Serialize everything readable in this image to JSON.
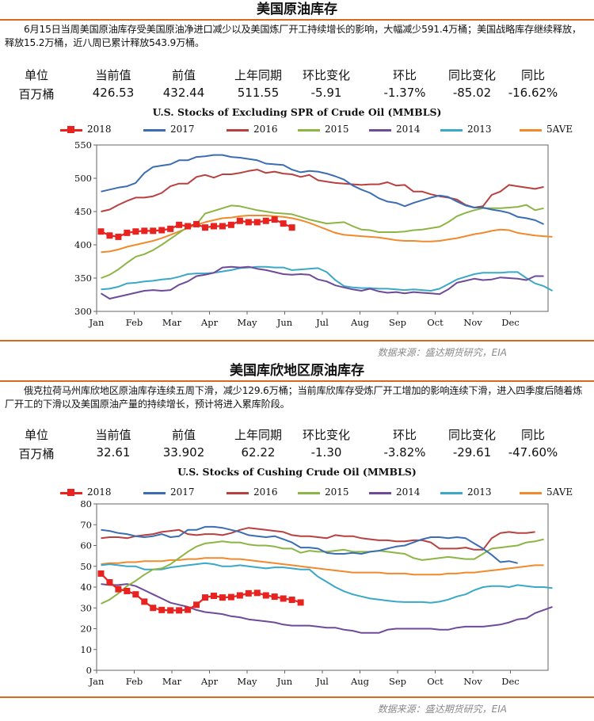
{
  "sections": [
    {
      "title": "美国原油库存",
      "description": "6月15日当周美国原油库存受美国原油净进口减少以及美国炼厂开工持续增长的影响，大幅减少591.4万桶；美国战略库存继续释放，释放15.2万桶，近八周已累计释放543.9万桶。",
      "stats": {
        "headers": [
          "单位",
          "当前值",
          "前值",
          "上年同期",
          "环比变化",
          "环比",
          "同比变化",
          "同比"
        ],
        "values": [
          "百万桶",
          "426.53",
          "432.44",
          "511.55",
          "-5.91",
          "-1.37%",
          "-85.02",
          "-16.62%"
        ]
      },
      "source": "数据来源：盛达期货研究，EIA"
    },
    {
      "title": "美国库欣地区原油库存",
      "description": "俄克拉荷马州库欣地区原油库存连续五周下滑，减少129.6万桶；当前库欣库存受炼厂开工增加的影响连续下滑，进入四季度后随着炼厂开工的下滑以及美国原油产量的持续增长，预计将进入累库阶段。",
      "stats": {
        "headers": [
          "单位",
          "当前值",
          "前值",
          "上年同期",
          "环比变化",
          "环比",
          "同比变化",
          "同比"
        ],
        "values": [
          "百万桶",
          "32.61",
          "33.902",
          "62.22",
          "-1.30",
          "-3.82%",
          "-29.61",
          "-47.60%"
        ]
      },
      "source": "数据来源：盛达期货研究，EIA"
    }
  ],
  "colors": {
    "s2018": "#e8231f",
    "s2017": "#3b6db3",
    "s2016": "#b8403f",
    "s2015": "#8cb544",
    "s2014": "#6e4a98",
    "s2013": "#3aa8c6",
    "s5ave": "#f08a2c",
    "rule": "#d96a1d"
  },
  "chart_data": [
    {
      "type": "line",
      "title": "U.S.  Stocks of Excluding SPR of Crude Oil (MMBLS)",
      "x_labels": [
        "Jan",
        "Feb",
        "Mar",
        "Apr",
        "May",
        "Jun",
        "Jul",
        "Aug",
        "Sep",
        "Oct",
        "Nov",
        "Dec"
      ],
      "x_unit": "week",
      "ylim": [
        300,
        550
      ],
      "yticks": [
        300,
        350,
        400,
        450,
        500,
        550
      ],
      "grid": false,
      "legend": "top",
      "series": [
        {
          "name": "2018",
          "key": "s2018",
          "values": [
            420,
            414,
            412,
            418,
            420,
            421,
            421,
            422,
            424,
            430,
            428,
            431,
            426,
            428,
            428,
            430,
            436,
            434,
            434,
            436,
            438,
            432,
            426
          ]
        },
        {
          "name": "2017",
          "key": "s2017",
          "values": [
            480,
            483,
            486,
            488,
            493,
            508,
            517,
            519,
            521,
            527,
            527,
            532,
            533,
            535,
            535,
            532,
            531,
            529,
            527,
            522,
            521,
            520,
            513,
            509,
            511,
            510,
            507,
            503,
            498,
            489,
            483,
            478,
            470,
            465,
            463,
            458,
            463,
            467,
            471,
            474,
            472,
            465,
            459,
            456,
            456,
            453,
            451,
            448,
            442,
            440,
            437,
            431
          ]
        },
        {
          "name": "2016",
          "key": "s2016",
          "values": [
            450,
            453,
            460,
            466,
            471,
            471,
            473,
            478,
            488,
            492,
            492,
            502,
            505,
            501,
            506,
            506,
            508,
            511,
            513,
            508,
            510,
            507,
            506,
            502,
            505,
            497,
            495,
            493,
            492,
            491,
            490,
            491,
            491,
            494,
            489,
            490,
            480,
            480,
            476,
            473,
            471,
            468,
            460,
            456,
            458,
            475,
            480,
            490,
            488,
            486,
            484,
            487
          ]
        },
        {
          "name": "2015",
          "key": "s2015",
          "values": [
            350,
            355,
            363,
            373,
            382,
            386,
            392,
            400,
            409,
            418,
            427,
            431,
            447,
            451,
            455,
            459,
            458,
            455,
            452,
            450,
            448,
            447,
            446,
            442,
            438,
            435,
            432,
            433,
            434,
            428,
            423,
            422,
            419,
            419,
            419,
            420,
            422,
            423,
            425,
            427,
            434,
            443,
            448,
            452,
            455,
            455,
            455,
            456,
            457,
            460,
            452,
            455
          ]
        },
        {
          "name": "2014",
          "key": "s2014",
          "values": [
            327,
            319,
            322,
            325,
            328,
            331,
            332,
            331,
            332,
            340,
            345,
            353,
            355,
            358,
            366,
            367,
            366,
            367,
            364,
            362,
            359,
            356,
            355,
            356,
            355,
            348,
            345,
            339,
            336,
            333,
            331,
            334,
            330,
            328,
            329,
            327,
            329,
            328,
            327,
            326,
            333,
            343,
            346,
            349,
            347,
            348,
            351,
            350,
            349,
            347,
            353,
            353
          ]
        },
        {
          "name": "2013",
          "key": "s2013",
          "values": [
            333,
            334,
            337,
            342,
            343,
            345,
            346,
            348,
            349,
            352,
            356,
            357,
            357,
            358,
            360,
            362,
            365,
            366,
            367,
            367,
            366,
            366,
            362,
            363,
            364,
            365,
            359,
            347,
            338,
            336,
            335,
            335,
            334,
            334,
            333,
            332,
            333,
            332,
            331,
            334,
            341,
            348,
            352,
            356,
            358,
            358,
            358,
            359,
            359,
            350,
            342,
            338,
            331
          ]
        },
        {
          "name": "5AVE",
          "key": "s5ave",
          "values": [
            389,
            390,
            393,
            397,
            400,
            403,
            406,
            410,
            415,
            420,
            425,
            430,
            434,
            437,
            440,
            441,
            443,
            444,
            444,
            444,
            443,
            442,
            440,
            437,
            433,
            428,
            423,
            418,
            415,
            414,
            413,
            412,
            411,
            409,
            407,
            406,
            406,
            405,
            405,
            406,
            408,
            410,
            413,
            416,
            418,
            421,
            423,
            422,
            418,
            416,
            414,
            413,
            412
          ]
        }
      ]
    },
    {
      "type": "line",
      "title": "U.S.  Stocks of Cushing  Crude Oil (MMBLS)",
      "x_labels": [
        "Jan",
        "Feb",
        "Mar",
        "Apr",
        "May",
        "Jun",
        "Jul",
        "Aug",
        "Sep",
        "Oct",
        "Nov",
        "Dec"
      ],
      "x_unit": "week",
      "ylim": [
        0,
        80
      ],
      "yticks": [
        0,
        10,
        20,
        30,
        40,
        50,
        60,
        70,
        80
      ],
      "grid": false,
      "legend": "top",
      "series": [
        {
          "name": "2018",
          "key": "s2018",
          "values": [
            46.5,
            42.3,
            39.0,
            38.1,
            36.5,
            33.0,
            30.0,
            29.0,
            28.8,
            28.8,
            29.1,
            31.5,
            35.0,
            35.8,
            35.0,
            35.2,
            36.0,
            37.0,
            37.2,
            36.0,
            35.4,
            34.5,
            33.9,
            32.6
          ]
        },
        {
          "name": "2017",
          "key": "s2017",
          "values": [
            67.5,
            67.0,
            66.0,
            65.5,
            64.5,
            64.0,
            64.5,
            65.5,
            64.0,
            64.5,
            67.5,
            67.5,
            69.0,
            69.0,
            68.5,
            67.5,
            66.5,
            65.0,
            64.5,
            64.0,
            64.5,
            63.0,
            61.5,
            59.0,
            59.0,
            58.5,
            56.5,
            56.0,
            56.0,
            56.5,
            56.0,
            57.0,
            57.5,
            58.5,
            59.5,
            60.0,
            61.5,
            63.0,
            64.0,
            64.0,
            63.5,
            64.0,
            63.5,
            61.0,
            58.5,
            55.5,
            52.0,
            52.5,
            51.5
          ]
        },
        {
          "name": "2016",
          "key": "s2016",
          "values": [
            63.5,
            64.0,
            64.0,
            63.5,
            64.5,
            65.0,
            65.5,
            66.5,
            67.0,
            67.5,
            65.5,
            65.0,
            65.5,
            65.5,
            65.0,
            66.0,
            67.5,
            68.5,
            68.0,
            67.5,
            67.0,
            66.5,
            65.0,
            64.5,
            64.5,
            64.0,
            63.5,
            65.0,
            64.5,
            64.5,
            63.5,
            63.0,
            62.5,
            62.5,
            62.0,
            62.0,
            62.5,
            62.5,
            61.5,
            58.5,
            58.5,
            58.5,
            59.0,
            58.0,
            58.0,
            63.5,
            66.0,
            66.5,
            66.0,
            66.0,
            66.5
          ]
        },
        {
          "name": "2015",
          "key": "s2015",
          "values": [
            32.0,
            34.0,
            37.0,
            40.5,
            43.0,
            46.0,
            48.5,
            49.0,
            51.0,
            54.0,
            57.0,
            59.5,
            61.0,
            61.5,
            62.0,
            61.5,
            61.5,
            60.5,
            60.0,
            60.0,
            59.5,
            58.5,
            58.5,
            56.5,
            57.5,
            57.0,
            57.0,
            57.5,
            58.0,
            57.0,
            57.0,
            57.0,
            57.5,
            57.0,
            56.5,
            56.0,
            54.0,
            53.0,
            53.5,
            54.0,
            54.5,
            54.0,
            53.5,
            53.5,
            56.0,
            58.5,
            59.0,
            59.5,
            60.0,
            61.5,
            62.0,
            63.0
          ]
        },
        {
          "name": "2014",
          "key": "s2014",
          "values": [
            41.5,
            41.0,
            41.0,
            41.5,
            40.5,
            38.5,
            36.5,
            34.5,
            32.5,
            31.5,
            30.5,
            29.0,
            28.0,
            27.5,
            27.0,
            26.0,
            25.5,
            24.5,
            24.0,
            23.5,
            23.0,
            22.0,
            21.5,
            21.5,
            21.5,
            21.0,
            20.5,
            20.5,
            19.5,
            19.0,
            18.0,
            18.0,
            18.0,
            19.5,
            20.0,
            20.0,
            20.0,
            20.0,
            20.0,
            19.5,
            19.5,
            20.5,
            21.0,
            21.0,
            21.0,
            21.5,
            22.0,
            23.0,
            24.5,
            25.0,
            27.5,
            29.0,
            30.5
          ]
        },
        {
          "name": "2013",
          "key": "s2013",
          "values": [
            50.5,
            51.0,
            50.5,
            50.0,
            50.0,
            48.5,
            48.5,
            48.5,
            49.5,
            50.0,
            50.5,
            51.0,
            51.5,
            51.0,
            50.0,
            50.0,
            50.5,
            50.0,
            49.5,
            49.0,
            49.5,
            49.5,
            49.0,
            48.5,
            48.5,
            45.0,
            42.5,
            40.0,
            38.0,
            36.5,
            35.5,
            34.5,
            34.0,
            33.5,
            33.0,
            32.8,
            32.8,
            32.8,
            32.5,
            33.0,
            34.0,
            35.5,
            36.5,
            38.5,
            40.0,
            40.5,
            40.5,
            40.0,
            41.0,
            40.5,
            40.0,
            40.0,
            39.5
          ]
        },
        {
          "name": "5AVE",
          "key": "s5ave",
          "values": [
            51.0,
            51.5,
            51.5,
            52.0,
            52.0,
            52.5,
            52.5,
            52.5,
            53.0,
            53.0,
            53.5,
            53.5,
            54.0,
            54.0,
            54.0,
            53.5,
            53.5,
            53.0,
            52.5,
            52.0,
            51.5,
            51.0,
            50.5,
            50.0,
            49.5,
            49.0,
            48.5,
            48.0,
            47.5,
            47.0,
            47.0,
            47.0,
            47.0,
            46.5,
            46.5,
            46.5,
            46.0,
            46.0,
            46.0,
            46.0,
            46.5,
            46.5,
            47.0,
            47.0,
            47.5,
            48.0,
            48.5,
            49.0,
            49.5,
            50.0,
            50.5,
            50.5
          ]
        }
      ]
    }
  ]
}
